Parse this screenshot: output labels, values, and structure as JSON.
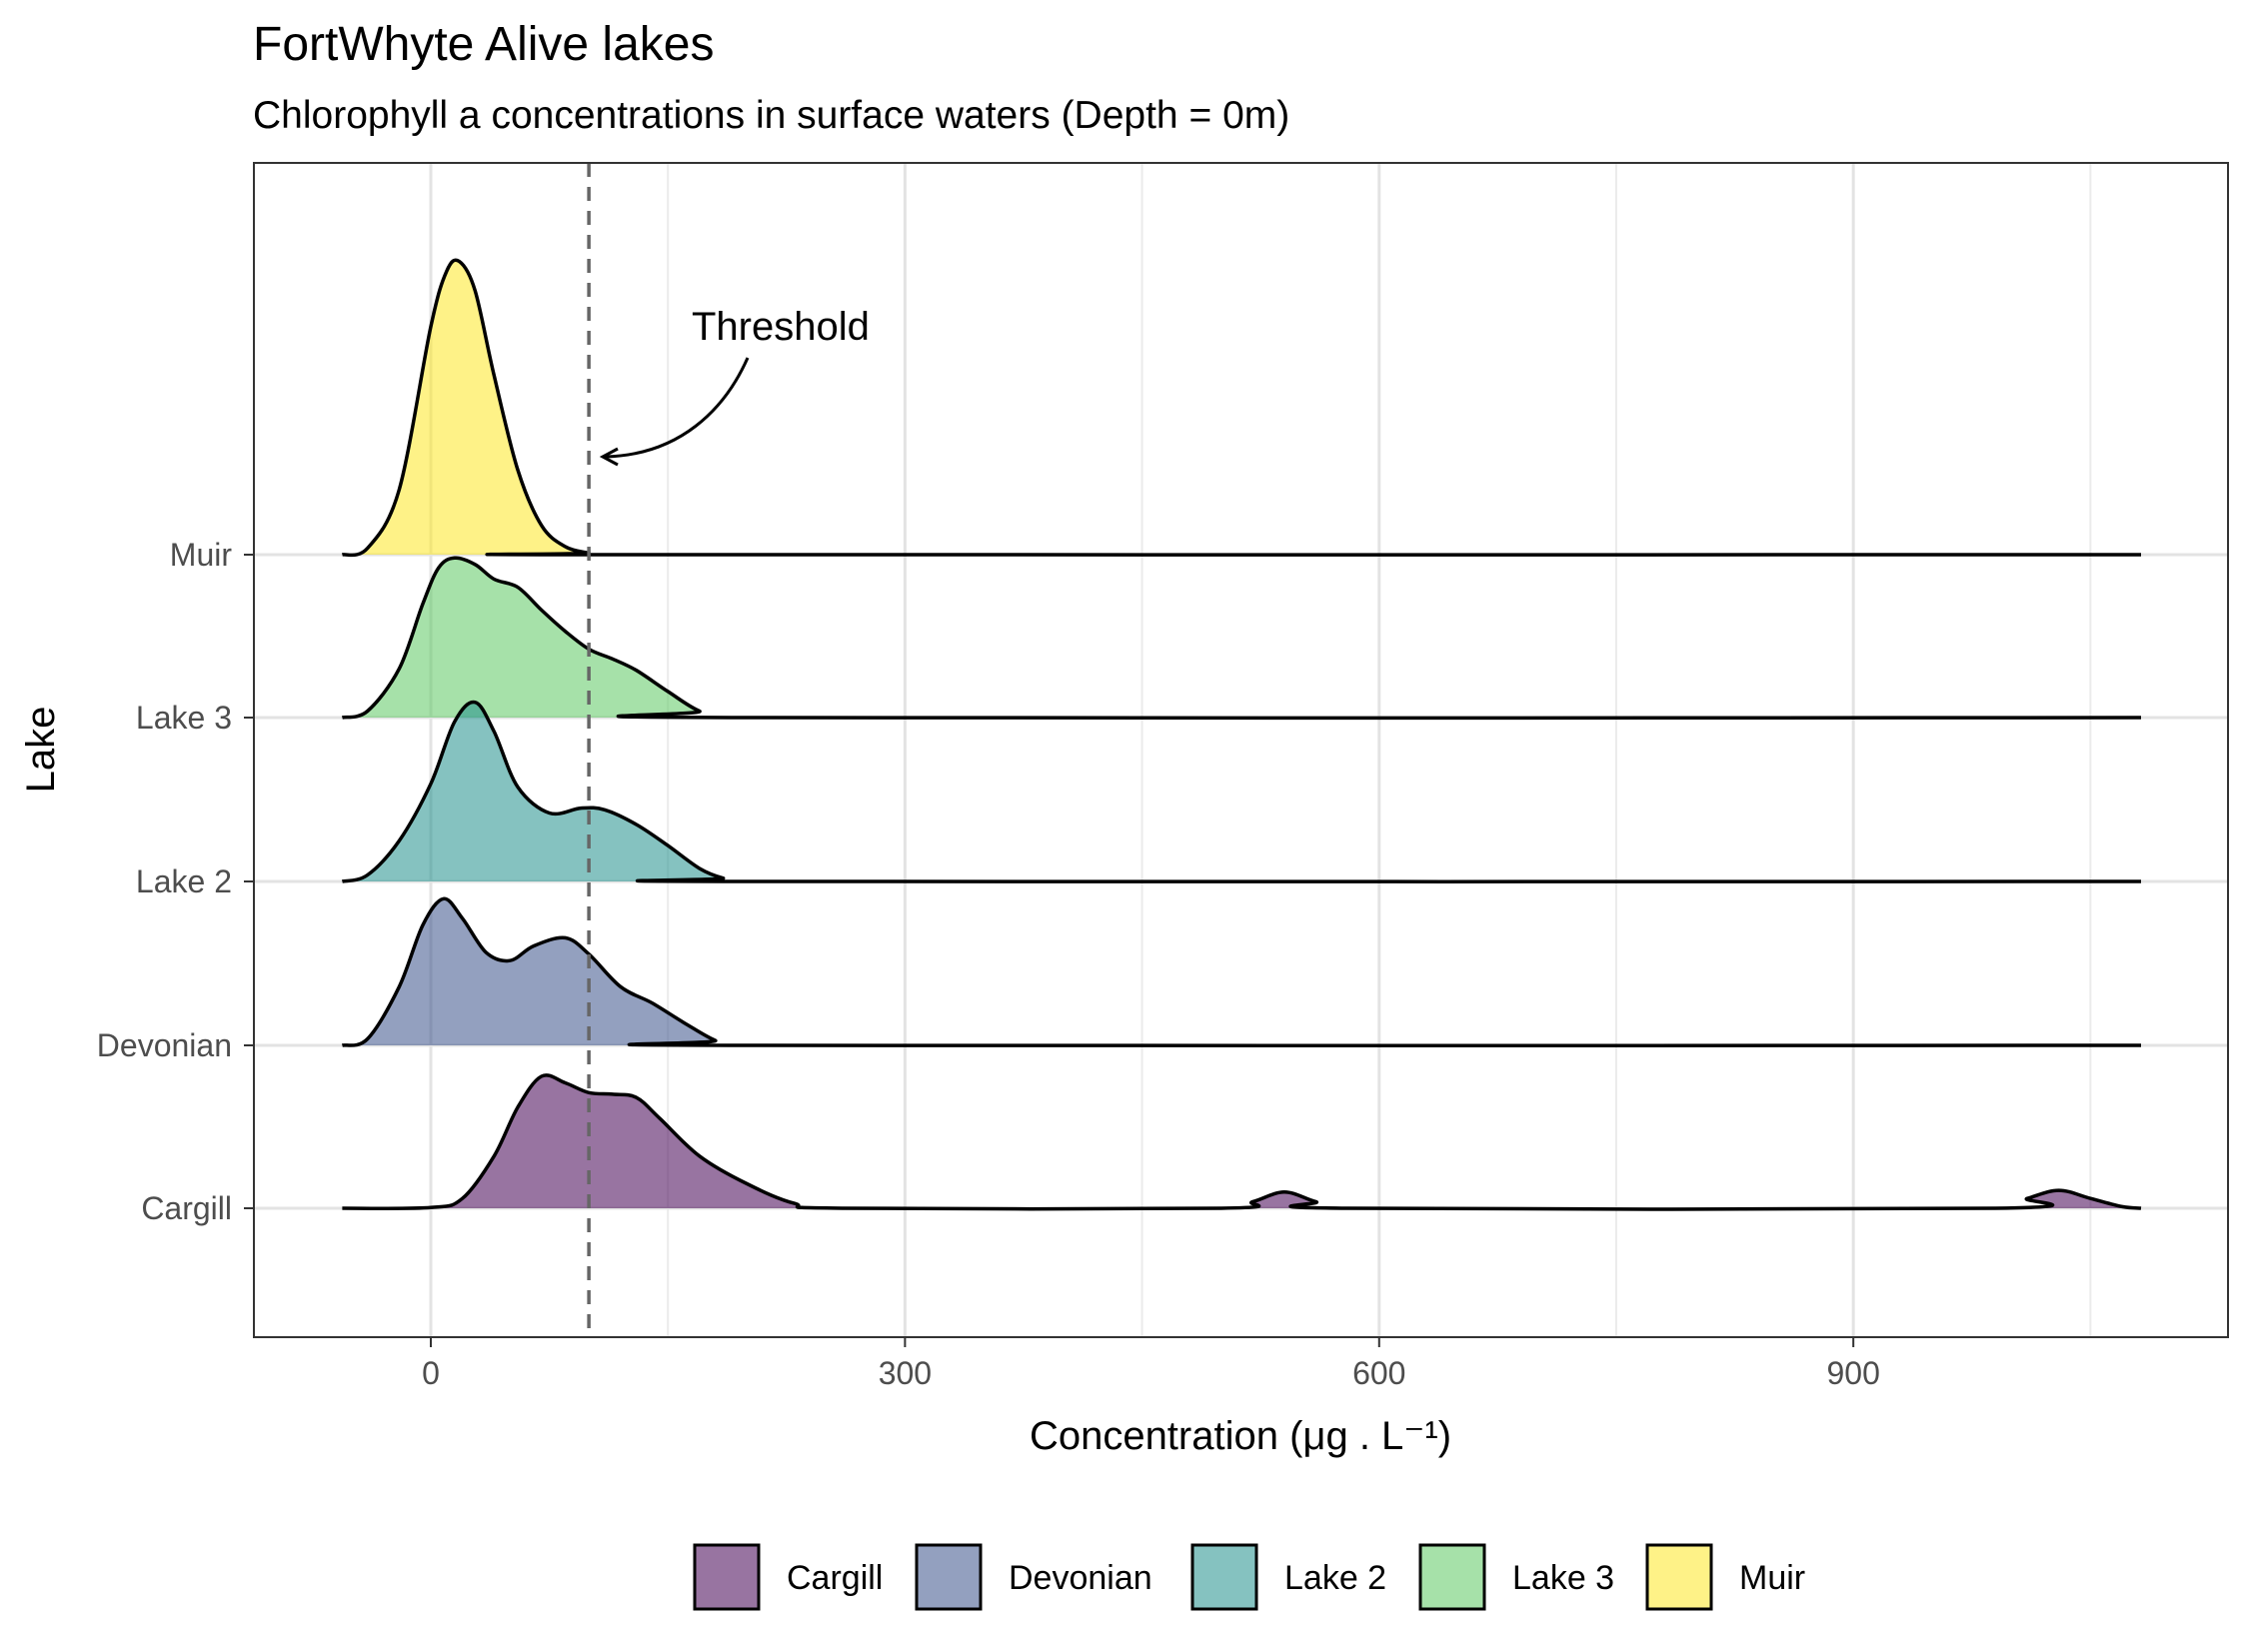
{
  "title": "FortWhyte Alive lakes",
  "subtitle": "Chlorophyll a concentrations in surface waters (Depth = 0m)",
  "chart_data": {
    "type": "ridgeline",
    "xlabel": "Concentration (μg . L⁻¹)",
    "ylabel": "Lake",
    "xlim": [
      -110,
      1140
    ],
    "x_ticks": [
      0,
      300,
      600,
      900
    ],
    "grid": true,
    "legend_position": "bottom",
    "threshold": {
      "x": 100,
      "label": "Threshold",
      "style": "dashed"
    },
    "series": [
      {
        "name": "Cargill",
        "color": "#440154",
        "density": [
          [
            -56,
            0
          ],
          [
            0,
            0.004
          ],
          [
            20,
            0.06
          ],
          [
            40,
            0.32
          ],
          [
            55,
            0.62
          ],
          [
            70,
            0.81
          ],
          [
            85,
            0.77
          ],
          [
            100,
            0.71
          ],
          [
            115,
            0.7
          ],
          [
            130,
            0.68
          ],
          [
            145,
            0.55
          ],
          [
            170,
            0.32
          ],
          [
            200,
            0.15
          ],
          [
            230,
            0.03
          ],
          [
            260,
            0
          ],
          [
            500,
            0
          ],
          [
            520,
            0.04
          ],
          [
            540,
            0.1
          ],
          [
            560,
            0.04
          ],
          [
            580,
            0
          ],
          [
            990,
            0
          ],
          [
            1010,
            0.06
          ],
          [
            1030,
            0.11
          ],
          [
            1050,
            0.06
          ],
          [
            1070,
            0.01
          ],
          [
            1082,
            0
          ]
        ]
      },
      {
        "name": "Devonian",
        "color": "#3B528B",
        "density": [
          [
            -56,
            0
          ],
          [
            -40,
            0.04
          ],
          [
            -20,
            0.36
          ],
          [
            -5,
            0.74
          ],
          [
            8,
            0.9
          ],
          [
            20,
            0.78
          ],
          [
            35,
            0.57
          ],
          [
            50,
            0.52
          ],
          [
            65,
            0.61
          ],
          [
            85,
            0.66
          ],
          [
            100,
            0.56
          ],
          [
            120,
            0.36
          ],
          [
            140,
            0.26
          ],
          [
            160,
            0.14
          ],
          [
            180,
            0.03
          ],
          [
            195,
            0
          ],
          [
            1082,
            0
          ]
        ]
      },
      {
        "name": "Lake 2",
        "color": "#21908C",
        "density": [
          [
            -56,
            0
          ],
          [
            -40,
            0.04
          ],
          [
            -20,
            0.25
          ],
          [
            0,
            0.6
          ],
          [
            15,
            0.98
          ],
          [
            28,
            1.1
          ],
          [
            40,
            0.92
          ],
          [
            55,
            0.58
          ],
          [
            75,
            0.42
          ],
          [
            95,
            0.45
          ],
          [
            110,
            0.44
          ],
          [
            130,
            0.35
          ],
          [
            150,
            0.22
          ],
          [
            170,
            0.08
          ],
          [
            185,
            0.02
          ],
          [
            200,
            0
          ],
          [
            1082,
            0
          ]
        ]
      },
      {
        "name": "Lake 3",
        "color": "#5DC863",
        "density": [
          [
            -56,
            0
          ],
          [
            -40,
            0.04
          ],
          [
            -20,
            0.3
          ],
          [
            -5,
            0.7
          ],
          [
            5,
            0.92
          ],
          [
            15,
            0.98
          ],
          [
            28,
            0.94
          ],
          [
            40,
            0.85
          ],
          [
            55,
            0.8
          ],
          [
            70,
            0.66
          ],
          [
            85,
            0.53
          ],
          [
            100,
            0.42
          ],
          [
            115,
            0.36
          ],
          [
            130,
            0.29
          ],
          [
            150,
            0.16
          ],
          [
            170,
            0.04
          ],
          [
            190,
            0
          ],
          [
            1082,
            0
          ]
        ]
      },
      {
        "name": "Muir",
        "color": "#FDE725",
        "density": [
          [
            -56,
            0
          ],
          [
            -40,
            0.04
          ],
          [
            -20,
            0.4
          ],
          [
            0,
            1.4
          ],
          [
            10,
            1.74
          ],
          [
            18,
            1.8
          ],
          [
            28,
            1.62
          ],
          [
            40,
            1.1
          ],
          [
            55,
            0.52
          ],
          [
            70,
            0.18
          ],
          [
            85,
            0.05
          ],
          [
            100,
            0.01
          ],
          [
            110,
            0
          ],
          [
            1082,
            0
          ]
        ]
      }
    ],
    "legend": [
      "Cargill",
      "Devonian",
      "Lake 2",
      "Lake 3",
      "Muir"
    ]
  }
}
